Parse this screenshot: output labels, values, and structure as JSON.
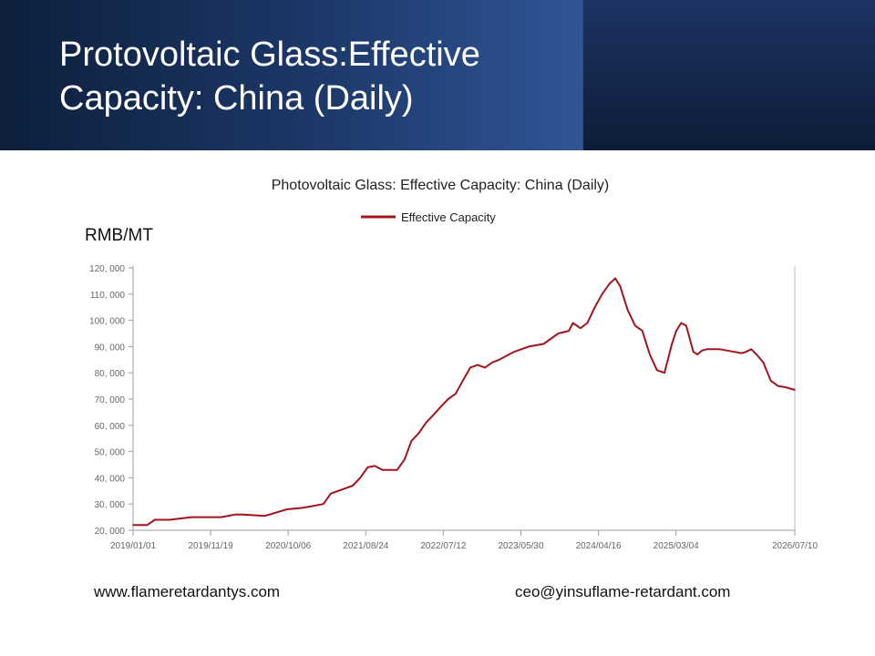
{
  "slide": {
    "title": "Protovoltaic Glass:Effective Capacity: China (Daily)"
  },
  "footer": {
    "website": "www.flameretardantys.com",
    "email": "ceo@yinsuflame-retardant.com"
  },
  "colors": {
    "series": "#a3141c",
    "header_dark": "#0d1f3c",
    "header_blue": "#2f5597"
  },
  "chart_data": {
    "type": "line",
    "title": "Photovoltaic Glass: Effective Capacity: China (Daily)",
    "ylabel": "RMB/MT",
    "xlabel": "",
    "ylim": [
      20000,
      120000
    ],
    "yticks": [
      20000,
      30000,
      40000,
      50000,
      60000,
      70000,
      80000,
      90000,
      100000,
      110000,
      120000
    ],
    "ytick_labels": [
      "20, 000",
      "30, 000",
      "40, 000",
      "50, 000",
      "60, 000",
      "70, 000",
      "80, 000",
      "90, 000",
      "100, 000",
      "110, 000",
      "120, 000"
    ],
    "xlim": [
      "2019/01/01",
      "2026/07/10"
    ],
    "xtick_labels": [
      "2019/01/01",
      "2019/11/19",
      "2020/10/06",
      "2021/08/24",
      "2022/07/12",
      "2023/05/30",
      "2024/04/16",
      "2025/03/04",
      "2026/07/10"
    ],
    "grid": false,
    "legend_position": "top-center",
    "series": [
      {
        "name": "Effective Capacity",
        "x": [
          "2019/01/01",
          "2019/03/01",
          "2019/04/01",
          "2019/06/01",
          "2019/09/01",
          "2019/11/01",
          "2020/01/01",
          "2020/03/01",
          "2020/04/01",
          "2020/07/01",
          "2020/10/01",
          "2020/12/01",
          "2021/01/01",
          "2021/03/01",
          "2021/04/01",
          "2021/05/01",
          "2021/06/01",
          "2021/07/01",
          "2021/08/01",
          "2021/09/01",
          "2021/10/01",
          "2021/11/01",
          "2022/01/01",
          "2022/02/01",
          "2022/03/01",
          "2022/04/01",
          "2022/05/01",
          "2022/06/01",
          "2022/07/01",
          "2022/08/01",
          "2022/09/01",
          "2022/10/01",
          "2022/11/01",
          "2022/12/01",
          "2023/01/01",
          "2023/02/01",
          "2023/03/01",
          "2023/05/01",
          "2023/07/01",
          "2023/09/01",
          "2023/11/01",
          "2023/12/15",
          "2024/01/01",
          "2024/02/01",
          "2024/03/01",
          "2024/04/01",
          "2024/05/01",
          "2024/06/01",
          "2024/06/25",
          "2024/07/15",
          "2024/08/15",
          "2024/09/15",
          "2024/10/15",
          "2024/11/15",
          "2024/12/15",
          "2025/01/15",
          "2025/02/15",
          "2025/03/05",
          "2025/03/25",
          "2025/04/15",
          "2025/05/15",
          "2025/06/01",
          "2025/06/20",
          "2025/07/10",
          "2025/08/01",
          "2025/09/01",
          "2025/10/01",
          "2025/11/01",
          "2025/12/01",
          "2025/12/20",
          "2026/01/10",
          "2026/02/01",
          "2026/03/01",
          "2026/04/01",
          "2026/05/01",
          "2026/06/01",
          "2026/07/10"
        ],
        "values": [
          22000,
          22000,
          24000,
          24000,
          25000,
          25000,
          25000,
          26000,
          26000,
          25500,
          28000,
          28500,
          29000,
          30000,
          34000,
          35000,
          36000,
          37000,
          40000,
          44000,
          44500,
          43000,
          43000,
          47000,
          54000,
          57000,
          61000,
          64000,
          67000,
          70000,
          72000,
          77000,
          82000,
          83000,
          82000,
          84000,
          85000,
          88000,
          90000,
          91000,
          95000,
          96000,
          99000,
          97000,
          99000,
          105000,
          110000,
          114000,
          116000,
          113000,
          104000,
          98000,
          96000,
          87000,
          81000,
          80000,
          91000,
          96000,
          99000,
          98000,
          88000,
          87000,
          88500,
          89000,
          89000,
          89000,
          88500,
          88000,
          87500,
          88000,
          89000,
          87000,
          84000,
          77000,
          75000,
          74500,
          73500
        ]
      }
    ]
  }
}
